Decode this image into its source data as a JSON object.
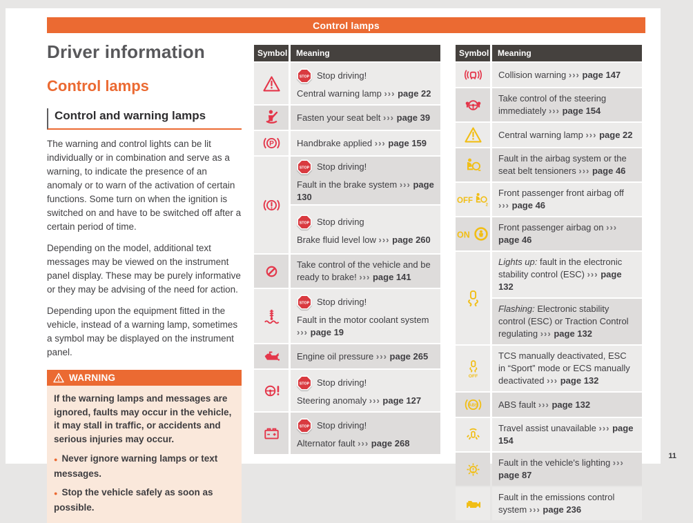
{
  "page": {
    "number": "11"
  },
  "banner": {
    "title": "Control lamps"
  },
  "colors": {
    "orange": "#EB6A32",
    "red": "#E4364A",
    "yellow": "#F1BE16",
    "stop_red": "#D93A40",
    "table_header_bg": "#45413E",
    "row_shade_light": "#ECEBEA",
    "row_shade_dark": "#DEDCDB",
    "warning_body_bg": "#FAE8DB"
  },
  "glyphs": {
    "chevrons": "›››",
    "stop_badge_label": "STOP",
    "warning_triangle": "warning-triangle"
  },
  "left_column": {
    "section_title": "Driver information",
    "chapter_title": "Control lamps",
    "subsection_title": "Control and warning lamps",
    "paragraphs": [
      "The warning and control lights can be lit individually or in combination and serve as a warning, to indicate the presence of an anomaly or to warn of the activation of certain functions. Some turn on when the ignition is switched on and have to be switched off after a certain period of time.",
      "Depending on the model, additional text messages may be viewed on the instrument panel display. These may be purely informative or they may be advising of the need for action.",
      "Depending upon the equipment fitted in the vehicle, instead of a warning lamp, sometimes a symbol may be displayed on the instrument panel."
    ],
    "warning_box": {
      "title": "WARNING",
      "body": "If the warning lamps and messages are ignored, faults may occur in the vehicle, it may stall in traffic, or accidents and serious injuries may occur.",
      "bullets": [
        "Never ignore warning lamps or text messages.",
        "Stop the vehicle safely as soon as possible."
      ]
    }
  },
  "tables": [
    {
      "headers": {
        "symbol": "Symbol",
        "meaning": "Meaning"
      },
      "rows": [
        {
          "icon": "warning-triangle-icon",
          "color": "red",
          "symbol_shade": "light",
          "cells": [
            {
              "shade": "light",
              "stop_label": "Stop driving!",
              "text": "Central warning lamp",
              "page_ref": "page 22"
            }
          ]
        },
        {
          "icon": "seat-belt-icon",
          "color": "red",
          "symbol_shade": "dark",
          "cells": [
            {
              "shade": "dark",
              "text": "Fasten your seat belt",
              "page_ref": "page 39"
            }
          ]
        },
        {
          "icon": "handbrake-icon",
          "color": "red",
          "symbol_shade": "light",
          "cells": [
            {
              "shade": "light",
              "text": "Handbrake applied",
              "page_ref": "page 159"
            }
          ]
        },
        {
          "icon": "brake-system-icon",
          "color": "red",
          "symbol_shade": "light",
          "cells": [
            {
              "shade": "dark",
              "stop_label": "Stop driving!",
              "text": "Fault in the brake system",
              "page_ref": "page 130"
            },
            {
              "shade": "light",
              "stop_label": "Stop driving",
              "text": "Brake fluid level low",
              "page_ref": "page 260"
            }
          ]
        },
        {
          "icon": "brake-ready-icon",
          "color": "red",
          "symbol_shade": "dark",
          "cells": [
            {
              "shade": "dark",
              "text": "Take control of the vehicle and be ready to brake!",
              "page_ref": "page 141"
            }
          ]
        },
        {
          "icon": "coolant-icon",
          "color": "red",
          "symbol_shade": "light",
          "cells": [
            {
              "shade": "light",
              "stop_label": "Stop driving!",
              "text": "Fault in the motor coolant system",
              "page_ref": "page 19"
            }
          ]
        },
        {
          "icon": "oil-pressure-icon",
          "color": "red",
          "symbol_shade": "dark",
          "cells": [
            {
              "shade": "dark",
              "text": "Engine oil pressure",
              "page_ref": "page 265"
            }
          ]
        },
        {
          "icon": "steering-anomaly-icon",
          "color": "red",
          "symbol_shade": "light",
          "cells": [
            {
              "shade": "light",
              "stop_label": "Stop driving!",
              "text": "Steering anomaly",
              "page_ref": "page 127"
            }
          ]
        },
        {
          "icon": "battery-icon",
          "color": "red",
          "symbol_shade": "dark",
          "cells": [
            {
              "shade": "dark",
              "stop_label": "Stop driving!",
              "text": "Alternator fault",
              "page_ref": "page 268"
            }
          ]
        }
      ]
    },
    {
      "headers": {
        "symbol": "Symbol",
        "meaning": "Meaning"
      },
      "rows": [
        {
          "icon": "collision-warning-icon",
          "color": "red",
          "symbol_shade": "light",
          "cells": [
            {
              "shade": "light",
              "text": "Collision warning",
              "page_ref": "page 147"
            }
          ]
        },
        {
          "icon": "steering-takeover-icon",
          "color": "red",
          "symbol_shade": "dark",
          "cells": [
            {
              "shade": "dark",
              "text": "Take control of the steering immediately",
              "page_ref": "page 154"
            }
          ]
        },
        {
          "icon": "warning-triangle-icon",
          "color": "yellow",
          "symbol_shade": "light",
          "cells": [
            {
              "shade": "light",
              "text": "Central warning lamp",
              "page_ref": "page 22"
            }
          ]
        },
        {
          "icon": "airbag-fault-icon",
          "color": "yellow",
          "symbol_shade": "dark",
          "cells": [
            {
              "shade": "dark",
              "text": "Fault in the airbag system or the seat belt tensioners",
              "page_ref": "page 46"
            }
          ]
        },
        {
          "icon": "airbag-off-icon",
          "color": "yellow",
          "symbol_shade": "light",
          "cells": [
            {
              "shade": "light",
              "text": "Front passenger front airbag off",
              "page_ref": "page 46"
            }
          ]
        },
        {
          "icon": "airbag-on-icon",
          "color": "yellow",
          "symbol_shade": "dark",
          "cells": [
            {
              "shade": "dark",
              "text": "Front passenger airbag on",
              "page_ref": "page 46"
            }
          ]
        },
        {
          "icon": "esc-icon",
          "color": "yellow",
          "symbol_shade": "light",
          "cells": [
            {
              "shade": "light",
              "italic_prefix": "Lights up:",
              "text": " fault in the electronic stability control (ESC)",
              "page_ref": "page 132"
            },
            {
              "shade": "dark",
              "italic_prefix": "Flashing:",
              "text": " Electronic stability control (ESC) or Traction Control regulating",
              "page_ref": "page 132"
            }
          ]
        },
        {
          "icon": "esc-off-icon",
          "color": "yellow",
          "symbol_shade": "light",
          "cells": [
            {
              "shade": "light",
              "text": "TCS manually deactivated, ESC in “Sport” mode or ECS manually deactivated",
              "page_ref": "page 132"
            }
          ]
        },
        {
          "icon": "abs-icon",
          "color": "yellow",
          "symbol_shade": "dark",
          "cells": [
            {
              "shade": "dark",
              "text": "ABS fault",
              "page_ref": "page 132"
            }
          ]
        },
        {
          "icon": "travel-assist-icon",
          "color": "yellow",
          "symbol_shade": "light",
          "cells": [
            {
              "shade": "light",
              "text": "Travel assist unavailable",
              "page_ref": "page 154"
            }
          ]
        },
        {
          "icon": "lighting-fault-icon",
          "color": "yellow",
          "symbol_shade": "dark",
          "cells": [
            {
              "shade": "dark",
              "text": "Fault in the vehicle's lighting",
              "page_ref": "page 87"
            }
          ]
        },
        {
          "icon": "emissions-icon",
          "color": "yellow",
          "symbol_shade": "light",
          "cells": [
            {
              "shade": "light",
              "text": "Fault in the emissions control system",
              "page_ref": "page 236"
            }
          ]
        }
      ]
    }
  ]
}
